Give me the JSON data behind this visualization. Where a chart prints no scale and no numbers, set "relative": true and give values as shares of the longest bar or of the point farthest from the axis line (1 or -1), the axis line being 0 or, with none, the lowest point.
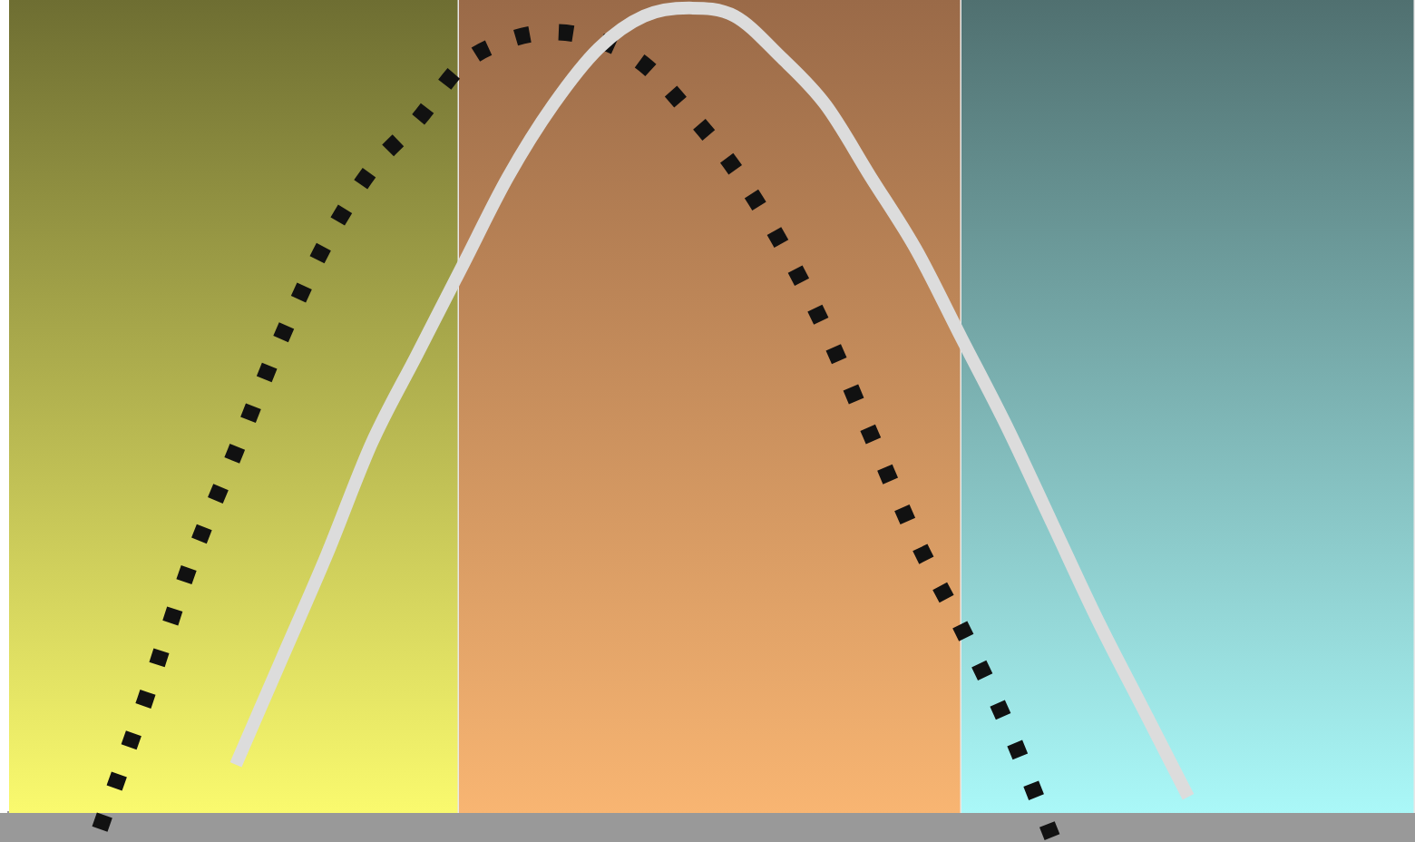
{
  "chart_data": {
    "type": "line",
    "relative": true,
    "tick_labels": false,
    "legend": false,
    "marker": "none",
    "categories": [
      null,
      null,
      null,
      null,
      null,
      null,
      null,
      null,
      null,
      null,
      null,
      null,
      null,
      null,
      null,
      null,
      null,
      null,
      null,
      null,
      null,
      null,
      null,
      null,
      null,
      null,
      null,
      null,
      null,
      null,
      null,
      null
    ],
    "series": [
      {
        "color": "#dcdcdc",
        "line_style": "solid",
        "values": [
          null,
          null,
          null,
          null,
          null,
          0.06,
          0.19,
          0.32,
          0.46,
          0.57,
          0.68,
          0.79,
          0.88,
          0.95,
          0.99,
          1,
          0.99,
          0.94,
          0.88,
          0.79,
          0.7,
          0.59,
          0.48,
          0.36,
          0.24,
          0.13,
          0.02,
          null,
          null,
          null,
          null,
          null
        ]
      },
      {
        "color": "#111111",
        "line_style": "dotted",
        "values": [
          null,
          null,
          -0.02,
          0.14,
          0.31,
          0.45,
          0.59,
          0.71,
          0.8,
          0.86,
          0.93,
          0.96,
          0.97,
          0.96,
          0.93,
          0.87,
          0.8,
          0.71,
          0.6,
          0.47,
          0.34,
          0.23,
          0.11,
          -0.03,
          null,
          null,
          null,
          null,
          null,
          null,
          null,
          null
        ]
      }
    ]
  }
}
